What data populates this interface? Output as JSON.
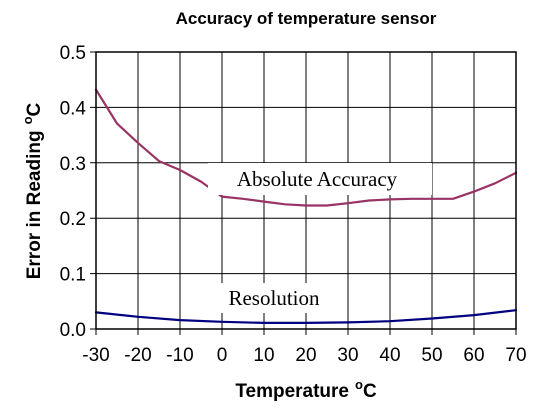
{
  "chart_data": {
    "type": "line",
    "title": "Accuracy of temperature sensor",
    "xlabel": "Temperature",
    "xlabel_unit": "C",
    "ylabel": "Error in Reading",
    "ylabel_unit": "C",
    "degree_mark": "o",
    "xlim": [
      -30,
      70
    ],
    "ylim": [
      0,
      0.5
    ],
    "x_ticks": [
      -30,
      -20,
      -10,
      0,
      10,
      20,
      30,
      40,
      50,
      60,
      70
    ],
    "y_ticks": [
      0.0,
      0.1,
      0.2,
      0.3,
      0.4,
      0.5
    ],
    "y_tick_labels": [
      "0.0",
      "0.1",
      "0.2",
      "0.3",
      "0.4",
      "0.5"
    ],
    "grid": true,
    "series": [
      {
        "name": "Absolute Accuracy",
        "color": "#993366",
        "x": [
          -30,
          -25,
          -20,
          -15,
          -10,
          -5,
          0,
          5,
          10,
          15,
          20,
          25,
          30,
          35,
          40,
          45,
          50,
          55,
          60,
          65,
          70
        ],
        "y": [
          0.432,
          0.371,
          0.336,
          0.303,
          0.287,
          0.266,
          0.239,
          0.235,
          0.23,
          0.225,
          0.223,
          0.223,
          0.227,
          0.232,
          0.234,
          0.235,
          0.235,
          0.235,
          0.248,
          0.263,
          0.282
        ]
      },
      {
        "name": "Resolution",
        "color": "#000080",
        "x": [
          -30,
          -20,
          -10,
          0,
          10,
          20,
          30,
          40,
          50,
          60,
          70
        ],
        "y": [
          0.03,
          0.022,
          0.016,
          0.013,
          0.011,
          0.011,
          0.012,
          0.014,
          0.019,
          0.025,
          0.034
        ]
      }
    ]
  }
}
